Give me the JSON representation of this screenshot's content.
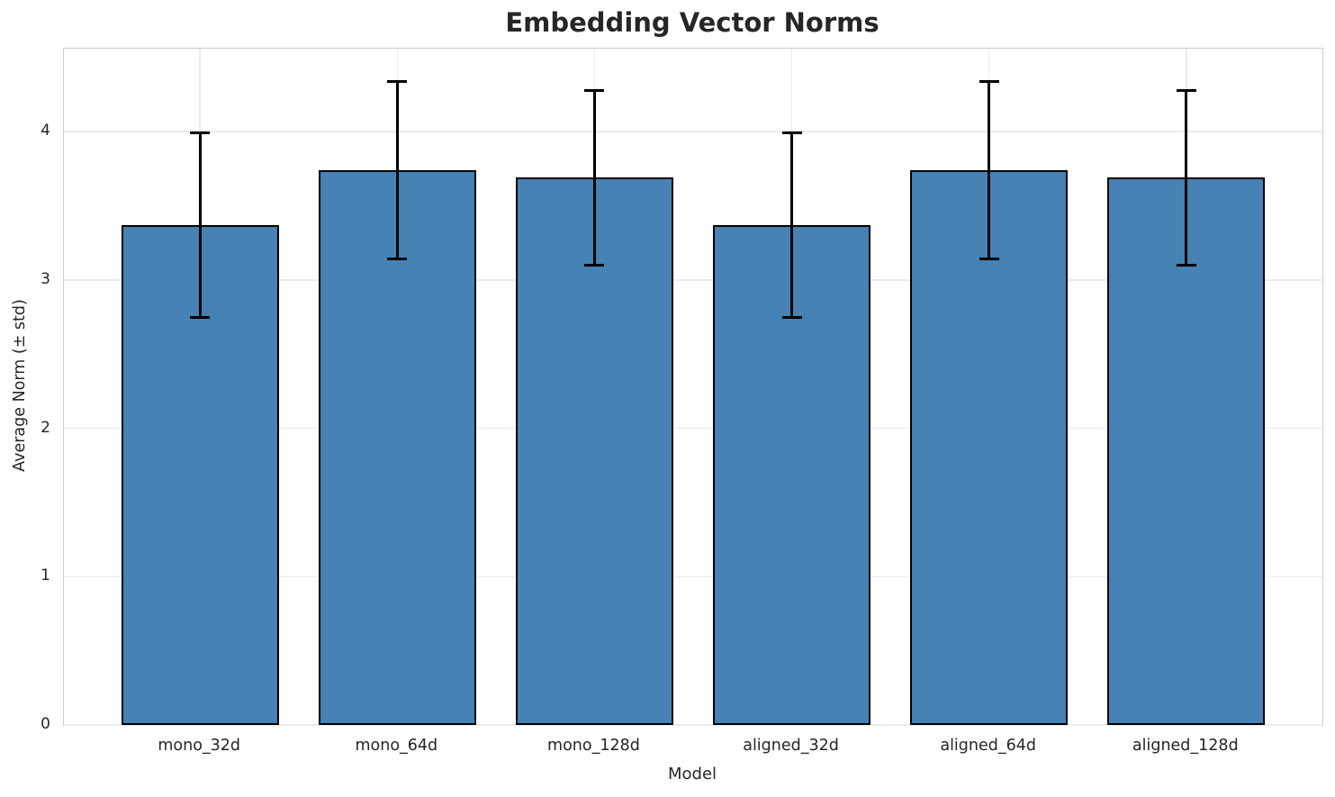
{
  "chart_data": {
    "type": "bar",
    "title": "Embedding Vector Norms",
    "xlabel": "Model",
    "ylabel": "Average Norm (± std)",
    "categories": [
      "mono_32d",
      "mono_64d",
      "mono_128d",
      "aligned_32d",
      "aligned_64d",
      "aligned_128d"
    ],
    "series": [
      {
        "name": "Average Norm",
        "values": [
          3.37,
          3.74,
          3.69,
          3.37,
          3.74,
          3.69
        ],
        "errors": [
          0.62,
          0.6,
          0.59,
          0.62,
          0.6,
          0.59
        ]
      }
    ],
    "yticks": [
      0,
      1,
      2,
      3,
      4
    ],
    "ylim": [
      0,
      4.56
    ],
    "xlim": [
      -0.69,
      5.69
    ],
    "bar_width_fraction": 0.8,
    "grid": true,
    "legend": "none",
    "colors": {
      "bar_fill": "#4682b4",
      "bar_edge": "#000000",
      "error_bar": "#000000",
      "grid_line": "#ececec",
      "spine": "#cccccc",
      "text": "#262626",
      "background": "#ffffff"
    }
  }
}
